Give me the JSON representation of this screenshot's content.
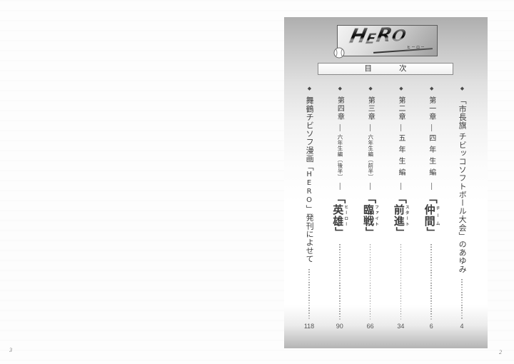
{
  "spread": {
    "left_page_number": "3",
    "right_page_number": "2"
  },
  "logo": {
    "text": "HERO",
    "letters": [
      "H",
      "E",
      "R",
      "O"
    ],
    "subtitle": "ヒーロー"
  },
  "contents_header": {
    "left_char": "目",
    "right_char": "次"
  },
  "toc": {
    "entries": [
      {
        "marker": "◆",
        "page": "4",
        "segments": [
          {
            "t": "「市長旗 チビッコソフトボール大会」のあゆみ",
            "cls": "body"
          }
        ]
      },
      {
        "marker": "◆",
        "page": "6",
        "segments": [
          {
            "t": "第一章",
            "cls": "chapter"
          },
          {
            "t": "―",
            "cls": "dash"
          },
          {
            "t": "四年生編",
            "cls": "grade-wide"
          },
          {
            "t": "―",
            "cls": "dash"
          },
          {
            "t": "「",
            "cls": "title"
          },
          {
            "t": "仲間",
            "cls": "title",
            "ruby": "チーム"
          },
          {
            "t": "」",
            "cls": "title"
          }
        ]
      },
      {
        "marker": "◆",
        "page": "34",
        "segments": [
          {
            "t": "第二章",
            "cls": "chapter"
          },
          {
            "t": "―",
            "cls": "dash"
          },
          {
            "t": "五年生編",
            "cls": "grade-wide"
          },
          {
            "t": "―",
            "cls": "dash"
          },
          {
            "t": "「",
            "cls": "title"
          },
          {
            "t": "前進",
            "cls": "title",
            "ruby": "スタート"
          },
          {
            "t": "」",
            "cls": "title"
          }
        ]
      },
      {
        "marker": "◆",
        "page": "66",
        "segments": [
          {
            "t": "第三章",
            "cls": "chapter"
          },
          {
            "t": "―",
            "cls": "dash"
          },
          {
            "t": "六年生編〔前半〕",
            "cls": "grade-small"
          },
          {
            "t": "―",
            "cls": "dash"
          },
          {
            "t": "「",
            "cls": "title"
          },
          {
            "t": "臨戦",
            "cls": "title",
            "ruby": "ファイト"
          },
          {
            "t": "」",
            "cls": "title"
          }
        ]
      },
      {
        "marker": "◆",
        "page": "90",
        "segments": [
          {
            "t": "第四章",
            "cls": "chapter"
          },
          {
            "t": "―",
            "cls": "dash"
          },
          {
            "t": "六年生編〔後半〕",
            "cls": "grade-small"
          },
          {
            "t": "―",
            "cls": "dash"
          },
          {
            "t": "「",
            "cls": "title"
          },
          {
            "t": "英雄",
            "cls": "title",
            "ruby": "ヒーロー"
          },
          {
            "t": "」",
            "cls": "title"
          }
        ]
      },
      {
        "marker": "◆",
        "page": "118",
        "segments": [
          {
            "t": "舞鶴チビソフ漫画",
            "cls": "body"
          },
          {
            "t": "「",
            "cls": "body"
          },
          {
            "t": "HERO",
            "cls": "upright"
          },
          {
            "t": "」",
            "cls": "body"
          },
          {
            "t": "発刊によせて",
            "cls": "body"
          }
        ]
      }
    ]
  },
  "colors": {
    "page_grey_top": "#aeaeae",
    "page_grey_bottom": "#b4b4b4",
    "text": "#3c3c3c",
    "leader_dots": "#979797"
  }
}
